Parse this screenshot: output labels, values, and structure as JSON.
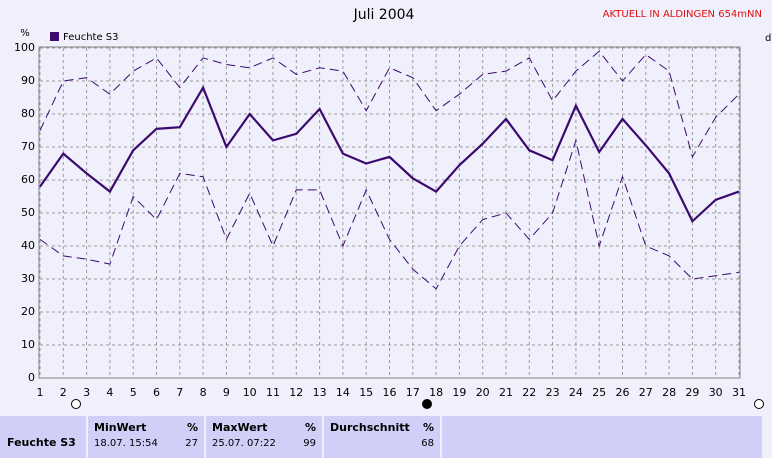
{
  "header": {
    "title": "Juli 2004",
    "station": "AKTUELL IN ALDINGEN 654mNN",
    "y_unit": "%",
    "right_label": "d"
  },
  "chart_data": {
    "type": "line",
    "x": [
      1,
      2,
      3,
      4,
      5,
      6,
      7,
      8,
      9,
      10,
      11,
      12,
      13,
      14,
      15,
      16,
      17,
      18,
      19,
      20,
      21,
      22,
      23,
      24,
      25,
      26,
      27,
      28,
      29,
      30,
      31
    ],
    "xlim": [
      1,
      31
    ],
    "xticks": [
      1,
      2,
      3,
      4,
      5,
      6,
      7,
      8,
      9,
      10,
      11,
      12,
      13,
      14,
      15,
      16,
      17,
      18,
      19,
      20,
      21,
      22,
      23,
      24,
      25,
      26,
      27,
      28,
      29,
      30,
      31
    ],
    "ylim": [
      0,
      100
    ],
    "yticks": [
      0,
      10,
      20,
      30,
      40,
      50,
      60,
      70,
      80,
      90,
      100
    ],
    "grid": true,
    "series": [
      {
        "name": "Feuchte S3",
        "color": "#3c0a6e",
        "dashed": false,
        "values": [
          58,
          68,
          62,
          56.5,
          69,
          75.5,
          76,
          88,
          70,
          80,
          72,
          74,
          81.5,
          68,
          65,
          67,
          60.5,
          56.5,
          64.5,
          71,
          78.5,
          69,
          66,
          82.5,
          68.5,
          78.5,
          70.5,
          62,
          47.5,
          54,
          56.5
        ]
      },
      {
        "color": "#3c0a6e",
        "dashed": true,
        "values": [
          75,
          90,
          91,
          86,
          93,
          97,
          88,
          97,
          95,
          94,
          97,
          92,
          94,
          93,
          81,
          94,
          91,
          81,
          86,
          92,
          93,
          97,
          84,
          93,
          99,
          90,
          98,
          93,
          67,
          79,
          86
        ]
      },
      {
        "color": "#3c0a6e",
        "dashed": true,
        "values": [
          42,
          37,
          36,
          34.5,
          55,
          48,
          62,
          61,
          42,
          56,
          40,
          57,
          57,
          40,
          57,
          42,
          33,
          27,
          40,
          48,
          50,
          42,
          50,
          72,
          40,
          61,
          40,
          37,
          30,
          31,
          32
        ]
      }
    ]
  },
  "table": {
    "row_label": "Feuchte S3",
    "columns": [
      {
        "title": "MinWert",
        "unit": "%",
        "time": "18.07.  15:54",
        "value": "27"
      },
      {
        "title": "MaxWert",
        "unit": "%",
        "time": "25.07.  07:22",
        "value": "99"
      },
      {
        "title": "Durchschnitt",
        "unit": "%",
        "value": "68"
      }
    ]
  }
}
